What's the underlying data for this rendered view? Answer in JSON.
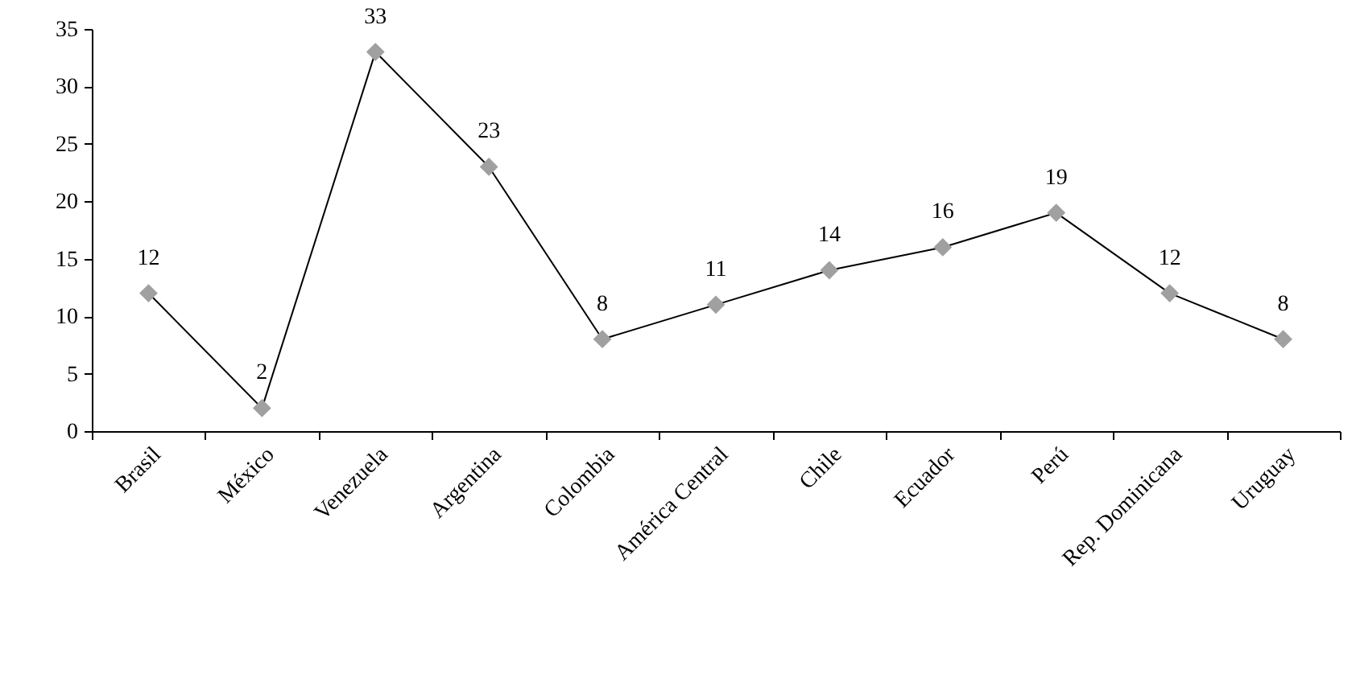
{
  "chart_data": {
    "type": "line",
    "categories": [
      "Brasil",
      "México",
      "Venezuela",
      "Argentina",
      "Colombia",
      "América Central",
      "Chile",
      "Ecuador",
      "Perú",
      "Rep. Dominicana",
      "Uruguay"
    ],
    "series": [
      {
        "color": "#a0a0a0",
        "values": [
          12,
          2,
          33,
          23,
          8,
          11,
          14,
          16,
          19,
          12,
          8
        ]
      }
    ],
    "ylim": [
      0,
      35
    ],
    "yticks": [
      0,
      5,
      10,
      15,
      20,
      25,
      30,
      35
    ],
    "marker": "diamond",
    "line_style": "solid",
    "data_labels": true,
    "grid": false
  }
}
